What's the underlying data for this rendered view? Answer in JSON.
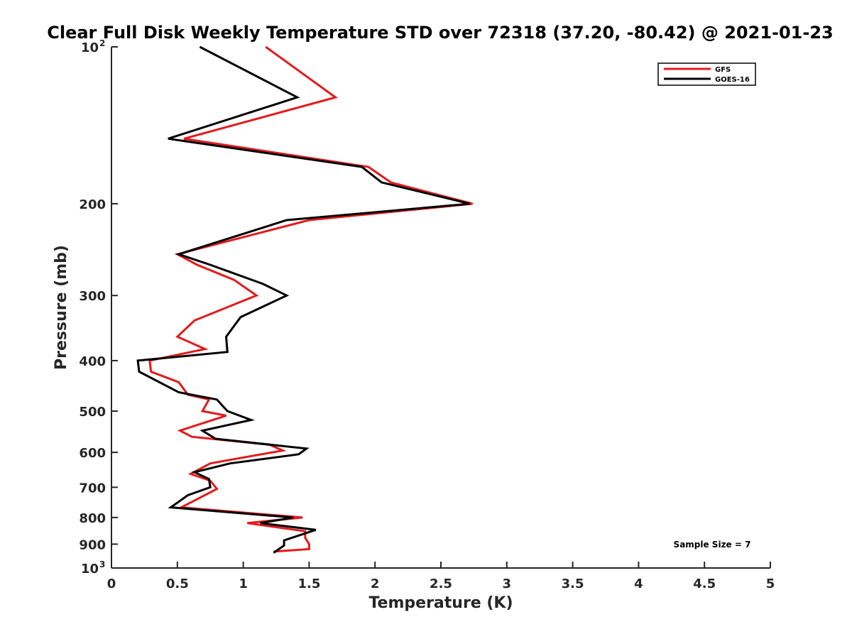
{
  "chart_data": {
    "type": "line",
    "title": "Clear Full Disk Weekly Temperature STD over 72318 (37.20, -80.42) @ 2021-01-23",
    "xlabel": "Temperature (K)",
    "ylabel": "Pressure (mb)",
    "xlim": [
      0,
      5
    ],
    "ylim": [
      100,
      1000
    ],
    "yscale": "log",
    "y_reversed": true,
    "x_ticks": [
      {
        "value": 0,
        "label": "0"
      },
      {
        "value": 0.5,
        "label": "0.5"
      },
      {
        "value": 1,
        "label": "1"
      },
      {
        "value": 1.5,
        "label": "1.5"
      },
      {
        "value": 2,
        "label": "2"
      },
      {
        "value": 2.5,
        "label": "2.5"
      },
      {
        "value": 3,
        "label": "3"
      },
      {
        "value": 3.5,
        "label": "3.5"
      },
      {
        "value": 4,
        "label": "4"
      },
      {
        "value": 4.5,
        "label": "4.5"
      },
      {
        "value": 5,
        "label": "5"
      }
    ],
    "y_ticks": [
      {
        "value": 100,
        "label": "10",
        "sup": "2"
      },
      {
        "value": 200,
        "label": "200"
      },
      {
        "value": 300,
        "label": "300"
      },
      {
        "value": 400,
        "label": "400"
      },
      {
        "value": 500,
        "label": "500"
      },
      {
        "value": 600,
        "label": "600"
      },
      {
        "value": 700,
        "label": "700"
      },
      {
        "value": 800,
        "label": "800"
      },
      {
        "value": 900,
        "label": "900"
      },
      {
        "value": 1000,
        "label": "10",
        "sup": "3"
      }
    ],
    "grid": false,
    "legend": {
      "placement": "top-right"
    },
    "annotation": "Sample Size = 7",
    "series": [
      {
        "name": "GFS",
        "color": "#e41a1c",
        "points": [
          {
            "x": 1.17,
            "y": 100
          },
          {
            "x": 1.7,
            "y": 125
          },
          {
            "x": 0.55,
            "y": 150
          },
          {
            "x": 1.95,
            "y": 170
          },
          {
            "x": 2.12,
            "y": 182
          },
          {
            "x": 2.74,
            "y": 200
          },
          {
            "x": 1.5,
            "y": 215
          },
          {
            "x": 0.5,
            "y": 250
          },
          {
            "x": 0.65,
            "y": 262
          },
          {
            "x": 0.93,
            "y": 280
          },
          {
            "x": 1.1,
            "y": 300
          },
          {
            "x": 0.63,
            "y": 335
          },
          {
            "x": 0.5,
            "y": 360
          },
          {
            "x": 0.71,
            "y": 380
          },
          {
            "x": 0.29,
            "y": 400
          },
          {
            "x": 0.3,
            "y": 420
          },
          {
            "x": 0.51,
            "y": 440
          },
          {
            "x": 0.58,
            "y": 465
          },
          {
            "x": 0.74,
            "y": 475
          },
          {
            "x": 0.69,
            "y": 500
          },
          {
            "x": 0.87,
            "y": 510
          },
          {
            "x": 0.52,
            "y": 545
          },
          {
            "x": 0.61,
            "y": 560
          },
          {
            "x": 1.2,
            "y": 580
          },
          {
            "x": 1.3,
            "y": 595
          },
          {
            "x": 0.75,
            "y": 630
          },
          {
            "x": 0.6,
            "y": 660
          },
          {
            "x": 0.75,
            "y": 680
          },
          {
            "x": 0.8,
            "y": 705
          },
          {
            "x": 0.53,
            "y": 765
          },
          {
            "x": 1.45,
            "y": 800
          },
          {
            "x": 1.03,
            "y": 820
          },
          {
            "x": 1.47,
            "y": 850
          },
          {
            "x": 1.47,
            "y": 875
          },
          {
            "x": 1.5,
            "y": 900
          },
          {
            "x": 1.5,
            "y": 920
          },
          {
            "x": 1.23,
            "y": 930
          }
        ]
      },
      {
        "name": "GOES-16",
        "color": "#000000",
        "points": [
          {
            "x": 0.67,
            "y": 100
          },
          {
            "x": 1.41,
            "y": 125
          },
          {
            "x": 0.43,
            "y": 150
          },
          {
            "x": 1.9,
            "y": 170
          },
          {
            "x": 2.05,
            "y": 182
          },
          {
            "x": 2.72,
            "y": 200
          },
          {
            "x": 1.33,
            "y": 215
          },
          {
            "x": 0.51,
            "y": 250
          },
          {
            "x": 0.75,
            "y": 262
          },
          {
            "x": 1.15,
            "y": 285
          },
          {
            "x": 1.33,
            "y": 300
          },
          {
            "x": 0.98,
            "y": 330
          },
          {
            "x": 0.87,
            "y": 360
          },
          {
            "x": 0.88,
            "y": 385
          },
          {
            "x": 0.2,
            "y": 400
          },
          {
            "x": 0.21,
            "y": 420
          },
          {
            "x": 0.51,
            "y": 460
          },
          {
            "x": 0.8,
            "y": 475
          },
          {
            "x": 0.88,
            "y": 500
          },
          {
            "x": 1.06,
            "y": 520
          },
          {
            "x": 0.69,
            "y": 545
          },
          {
            "x": 0.79,
            "y": 565
          },
          {
            "x": 1.48,
            "y": 590
          },
          {
            "x": 1.42,
            "y": 605
          },
          {
            "x": 0.9,
            "y": 630
          },
          {
            "x": 0.63,
            "y": 655
          },
          {
            "x": 0.74,
            "y": 675
          },
          {
            "x": 0.75,
            "y": 700
          },
          {
            "x": 0.58,
            "y": 725
          },
          {
            "x": 0.45,
            "y": 765
          },
          {
            "x": 1.38,
            "y": 800
          },
          {
            "x": 1.13,
            "y": 820
          },
          {
            "x": 1.55,
            "y": 845
          },
          {
            "x": 1.31,
            "y": 885
          },
          {
            "x": 1.31,
            "y": 905
          },
          {
            "x": 1.23,
            "y": 935
          }
        ]
      }
    ]
  }
}
